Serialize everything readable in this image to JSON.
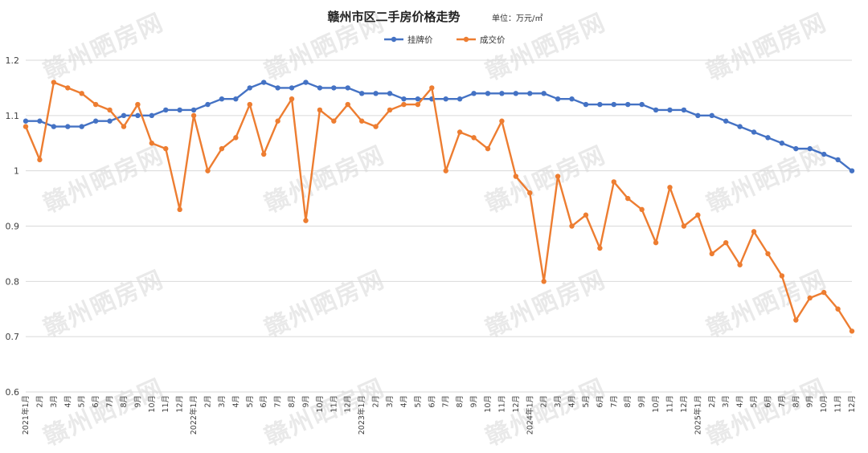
{
  "watermark": "赣州晒房网",
  "chart_data": {
    "type": "line",
    "title": "赣州市区二手房价格走势",
    "unit_note": "单位：万元/㎡",
    "xlabel": "",
    "ylabel": "",
    "ylim": [
      0.6,
      1.2
    ],
    "yticks": [
      "0.6",
      "0.7",
      "0.8",
      "0.9",
      "1",
      "1.1",
      "1.2"
    ],
    "grid": true,
    "legend_position": "top-center",
    "categories": [
      "2021年1月",
      "2月",
      "3月",
      "4月",
      "5月",
      "6月",
      "7月",
      "8月",
      "9月",
      "10月",
      "11月",
      "12月",
      "2022年1月",
      "2月",
      "3月",
      "4月",
      "5月",
      "6月",
      "7月",
      "8月",
      "9月",
      "10月",
      "11月",
      "12月",
      "2023年1月",
      "2月",
      "3月",
      "4月",
      "5月",
      "6月",
      "7月",
      "8月",
      "9月",
      "10月",
      "11月",
      "12月",
      "2024年1月",
      "2月",
      "3月",
      "4月",
      "5月",
      "6月",
      "7月",
      "8月",
      "9月",
      "10月",
      "11月",
      "12月",
      "2025年1月",
      "2月",
      "3月",
      "4月",
      "5月",
      "6月",
      "7月",
      "8月",
      "9月",
      "10月",
      "11月",
      "12月"
    ],
    "series": [
      {
        "name": "挂牌价",
        "color": "#4472c4",
        "values": [
          1.09,
          1.09,
          1.08,
          1.08,
          1.08,
          1.09,
          1.09,
          1.1,
          1.1,
          1.1,
          1.11,
          1.11,
          1.11,
          1.12,
          1.13,
          1.13,
          1.15,
          1.16,
          1.15,
          1.15,
          1.16,
          1.15,
          1.15,
          1.15,
          1.14,
          1.14,
          1.14,
          1.13,
          1.13,
          1.13,
          1.13,
          1.13,
          1.14,
          1.14,
          1.14,
          1.14,
          1.14,
          1.14,
          1.13,
          1.13,
          1.12,
          1.12,
          1.12,
          1.12,
          1.12,
          1.11,
          1.11,
          1.11,
          1.1,
          1.1,
          1.09,
          1.08,
          1.07,
          1.06,
          1.05,
          1.04,
          1.04,
          1.03,
          1.02,
          1.0
        ]
      },
      {
        "name": "成交价",
        "color": "#ed7d31",
        "values": [
          1.08,
          1.02,
          1.16,
          1.15,
          1.14,
          1.12,
          1.11,
          1.08,
          1.12,
          1.05,
          1.04,
          0.93,
          1.1,
          1.0,
          1.04,
          1.06,
          1.12,
          1.03,
          1.09,
          1.13,
          0.91,
          1.11,
          1.09,
          1.12,
          1.09,
          1.08,
          1.11,
          1.12,
          1.12,
          1.15,
          1.0,
          1.07,
          1.06,
          1.04,
          1.09,
          0.99,
          0.96,
          0.8,
          0.99,
          0.9,
          0.92,
          0.86,
          0.98,
          0.95,
          0.93,
          0.87,
          0.97,
          0.9,
          0.92,
          0.85,
          0.87,
          0.83,
          0.89,
          0.85,
          0.81,
          0.73,
          0.77,
          0.78,
          0.75,
          0.71
        ]
      }
    ]
  }
}
